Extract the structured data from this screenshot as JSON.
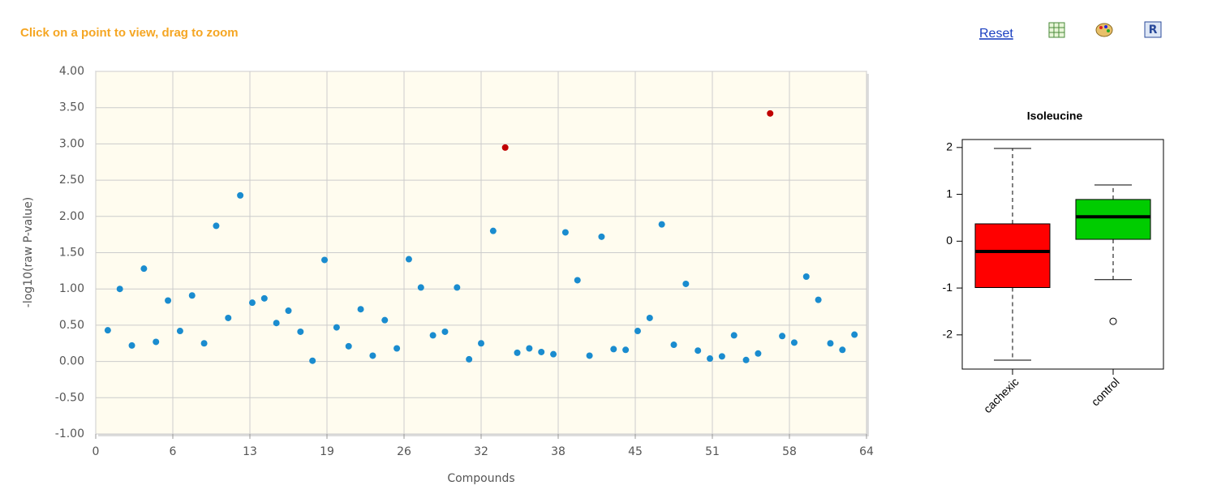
{
  "ui": {
    "instruction": "Click on a point to view, drag to zoom",
    "reset": "Reset"
  },
  "chart_data": [
    {
      "type": "scatter",
      "xlabel": "Compounds",
      "ylabel": "-log10(raw P-value)",
      "xlim": [
        0,
        64
      ],
      "xticks": [
        0,
        {
          "value": 6.4,
          "label": "6"
        },
        {
          "value": 12.8,
          "label": "13"
        },
        {
          "value": 19.2,
          "label": "19"
        },
        {
          "value": 25.6,
          "label": "26"
        },
        32,
        {
          "value": 38.4,
          "label": "38"
        },
        {
          "value": 44.8,
          "label": "45"
        },
        {
          "value": 51.2,
          "label": "51"
        },
        {
          "value": 57.6,
          "label": "58"
        },
        64
      ],
      "ylim": [
        -1,
        4
      ],
      "yticks": [
        {
          "value": 4,
          "label": "4.00"
        },
        {
          "value": 3.5,
          "label": "3.50"
        },
        {
          "value": 3,
          "label": "3.00"
        },
        {
          "value": 2.5,
          "label": "2.50"
        },
        {
          "value": 2,
          "label": "2.00"
        },
        {
          "value": 1.5,
          "label": "1.50"
        },
        {
          "value": 1,
          "label": "1.00"
        },
        {
          "value": 0.5,
          "label": "0.50"
        },
        {
          "value": 0,
          "label": "0.00"
        },
        {
          "value": -0.5,
          "label": "-0.50"
        },
        {
          "value": -1,
          "label": "-1.00"
        }
      ],
      "grid": true,
      "series": [
        {
          "color": "#1a8ccf",
          "x": [
            1,
            2,
            3,
            4,
            5,
            6,
            7,
            8,
            9,
            10,
            11,
            12,
            13,
            14,
            15,
            16,
            17,
            18,
            19,
            20,
            21,
            22,
            23,
            24,
            25,
            26,
            27,
            28,
            29,
            30,
            31,
            32,
            33,
            35,
            36,
            37,
            38,
            39,
            40,
            41,
            42,
            43,
            44,
            45,
            46,
            47,
            48,
            49,
            50,
            51,
            52,
            53,
            54,
            55,
            57,
            58,
            59,
            60,
            61,
            62,
            63
          ],
          "values": [
            0.43,
            1.0,
            0.22,
            1.28,
            0.27,
            0.84,
            0.42,
            0.91,
            0.25,
            1.87,
            0.6,
            2.29,
            0.81,
            0.87,
            0.53,
            0.7,
            0.41,
            0.01,
            1.4,
            0.47,
            0.21,
            0.72,
            0.08,
            0.57,
            0.18,
            1.41,
            1.02,
            0.36,
            0.41,
            1.02,
            0.03,
            0.25,
            1.8,
            0.12,
            0.18,
            0.13,
            0.1,
            1.78,
            1.12,
            0.08,
            1.72,
            0.17,
            0.16,
            0.42,
            0.6,
            1.89,
            0.23,
            1.07,
            0.15,
            0.04,
            0.07,
            0.36,
            0.02,
            0.11,
            0.35,
            0.26,
            1.17,
            0.85,
            0.25,
            0.16,
            0.37
          ]
        },
        {
          "color": "#c00000",
          "x": [
            34,
            56
          ],
          "values": [
            2.95,
            3.42
          ]
        }
      ]
    },
    {
      "type": "box",
      "title": "Isoleucine",
      "categories": [
        "cachexic",
        "control"
      ],
      "ylim": [
        -2.73,
        2.17
      ],
      "yticks": [
        -2,
        -1,
        0,
        1,
        2
      ],
      "boxes": [
        {
          "color": "#ff0000",
          "min": -2.54,
          "q1": -0.99,
          "median": -0.22,
          "q3": 0.37,
          "max": 1.98,
          "outliers": []
        },
        {
          "color": "#00cc00",
          "min": -0.82,
          "q1": 0.04,
          "median": 0.52,
          "q3": 0.89,
          "max": 1.2,
          "outliers": [
            -1.71
          ]
        }
      ]
    }
  ]
}
